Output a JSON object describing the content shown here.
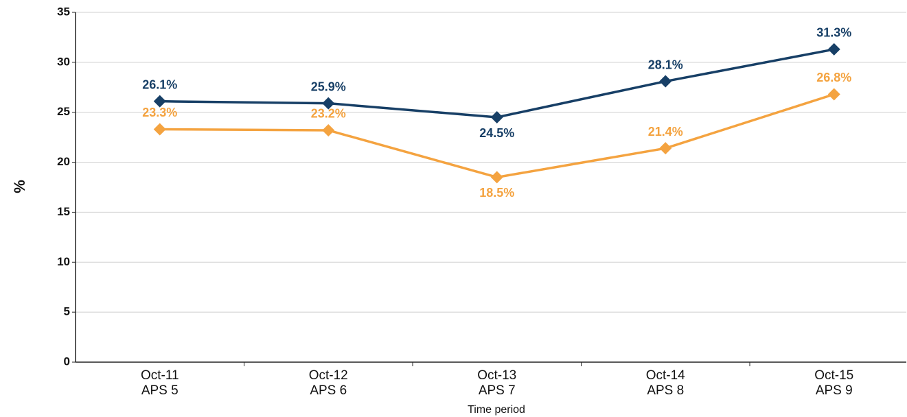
{
  "chart_data": {
    "type": "line",
    "x_label": "Time period",
    "y_label": "%",
    "categories": [
      [
        "Oct-11",
        "APS 5"
      ],
      [
        "Oct-12",
        "APS 6"
      ],
      [
        "Oct-13",
        "APS 7"
      ],
      [
        "Oct-14",
        "APS 8"
      ],
      [
        "Oct-15",
        "APS 9"
      ]
    ],
    "series": [
      {
        "color": "#173f66",
        "values": [
          26.1,
          25.9,
          24.5,
          28.1,
          31.3
        ],
        "value_labels": [
          "26.1%",
          "25.9%",
          "24.5%",
          "28.1%",
          "31.3%"
        ]
      },
      {
        "color": "#f4a340",
        "values": [
          23.3,
          23.2,
          18.5,
          21.4,
          26.8
        ],
        "value_labels": [
          "23.3%",
          "23.2%",
          "18.5%",
          "21.4%",
          "26.8%"
        ]
      }
    ],
    "ylim": [
      0,
      35
    ],
    "yticks": [
      0,
      5,
      10,
      15,
      20,
      25,
      30,
      35
    ],
    "grid": true
  }
}
